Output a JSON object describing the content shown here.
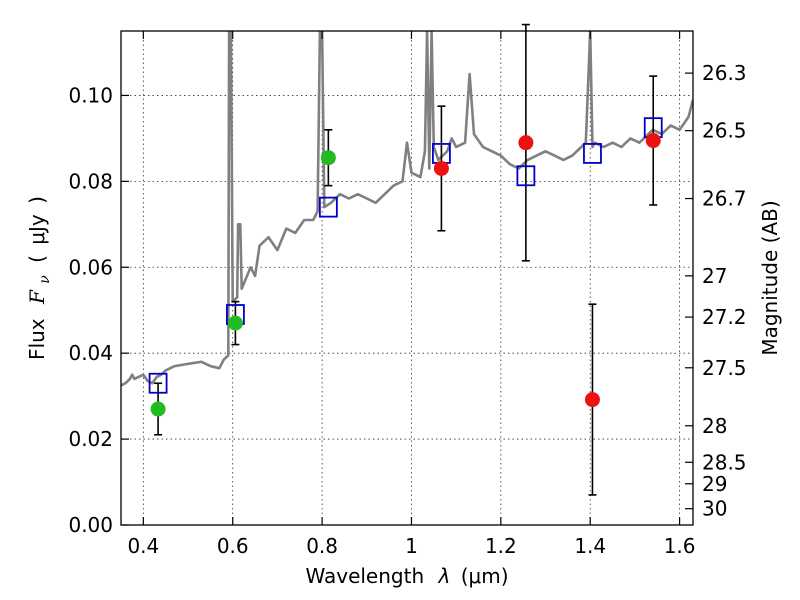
{
  "chart_data": {
    "type": "scatter",
    "title": "",
    "xlabel_prefix": "Wavelength",
    "xlabel_symbol": "λ",
    "xlabel_unit": "(μm)",
    "ylabel_prefix": "Flux",
    "ylabel_symbol": "F",
    "ylabel_subscript": "ν",
    "ylabel_unit": "μJy",
    "y2label": "Magnitude (AB)",
    "xlim": [
      0.35,
      1.63
    ],
    "ylim": [
      0.0,
      0.115
    ],
    "grid": true,
    "x_ticks": [
      0.4,
      0.6,
      0.8,
      1.0,
      1.2,
      1.4,
      1.6
    ],
    "x_tick_labels": [
      "0.4",
      "0.6",
      "0.8",
      "1",
      "1.2",
      "1.4",
      "1.6"
    ],
    "y_ticks": [
      0.0,
      0.02,
      0.04,
      0.06,
      0.08,
      0.1
    ],
    "y_tick_labels": [
      "0.00",
      "0.02",
      "0.04",
      "0.06",
      "0.08",
      "0.10"
    ],
    "y2_ticks": [
      {
        "label": "26.3",
        "flux": 0.1052
      },
      {
        "label": "26.5",
        "flux": 0.0918
      },
      {
        "label": "26.7",
        "flux": 0.076
      },
      {
        "label": "27",
        "flux": 0.058
      },
      {
        "label": "27.2",
        "flux": 0.0484
      },
      {
        "label": "27.5",
        "flux": 0.0366
      },
      {
        "label": "28",
        "flux": 0.0231
      },
      {
        "label": "28.5",
        "flux": 0.0146
      },
      {
        "label": "29",
        "flux": 0.0096
      },
      {
        "label": "30",
        "flux": 0.0038
      }
    ],
    "model_spectrum": {
      "color": "#808080",
      "points": [
        [
          0.35,
          0.0325
        ],
        [
          0.36,
          0.033
        ],
        [
          0.37,
          0.034
        ],
        [
          0.375,
          0.035
        ],
        [
          0.38,
          0.034
        ],
        [
          0.39,
          0.0345
        ],
        [
          0.4,
          0.035
        ],
        [
          0.41,
          0.0335
        ],
        [
          0.42,
          0.033
        ],
        [
          0.43,
          0.0345
        ],
        [
          0.44,
          0.035
        ],
        [
          0.45,
          0.036
        ],
        [
          0.47,
          0.037
        ],
        [
          0.5,
          0.0375
        ],
        [
          0.53,
          0.038
        ],
        [
          0.55,
          0.037
        ],
        [
          0.57,
          0.0365
        ],
        [
          0.58,
          0.0385
        ],
        [
          0.59,
          0.0395
        ],
        [
          0.592,
          0.115
        ],
        [
          0.596,
          0.115
        ],
        [
          0.6,
          0.052
        ],
        [
          0.61,
          0.053
        ],
        [
          0.612,
          0.07
        ],
        [
          0.617,
          0.07
        ],
        [
          0.62,
          0.055
        ],
        [
          0.64,
          0.06
        ],
        [
          0.65,
          0.058
        ],
        [
          0.66,
          0.065
        ],
        [
          0.68,
          0.067
        ],
        [
          0.7,
          0.064
        ],
        [
          0.72,
          0.069
        ],
        [
          0.74,
          0.068
        ],
        [
          0.76,
          0.071
        ],
        [
          0.78,
          0.071
        ],
        [
          0.79,
          0.073
        ],
        [
          0.795,
          0.115
        ],
        [
          0.8,
          0.115
        ],
        [
          0.805,
          0.074
        ],
        [
          0.82,
          0.075
        ],
        [
          0.84,
          0.077
        ],
        [
          0.86,
          0.076
        ],
        [
          0.88,
          0.077
        ],
        [
          0.9,
          0.076
        ],
        [
          0.92,
          0.075
        ],
        [
          0.94,
          0.077
        ],
        [
          0.96,
          0.079
        ],
        [
          0.98,
          0.08
        ],
        [
          0.99,
          0.089
        ],
        [
          1.0,
          0.082
        ],
        [
          1.02,
          0.081
        ],
        [
          1.03,
          0.087
        ],
        [
          1.035,
          0.115
        ],
        [
          1.04,
          0.083
        ],
        [
          1.045,
          0.115
        ],
        [
          1.05,
          0.088
        ],
        [
          1.06,
          0.085
        ],
        [
          1.07,
          0.086
        ],
        [
          1.08,
          0.087
        ],
        [
          1.09,
          0.09
        ],
        [
          1.1,
          0.088
        ],
        [
          1.12,
          0.089
        ],
        [
          1.13,
          0.105
        ],
        [
          1.14,
          0.091
        ],
        [
          1.16,
          0.088
        ],
        [
          1.18,
          0.087
        ],
        [
          1.2,
          0.086
        ],
        [
          1.22,
          0.084
        ],
        [
          1.24,
          0.083
        ],
        [
          1.26,
          0.085
        ],
        [
          1.28,
          0.086
        ],
        [
          1.3,
          0.087
        ],
        [
          1.32,
          0.086
        ],
        [
          1.34,
          0.085
        ],
        [
          1.36,
          0.086
        ],
        [
          1.38,
          0.088
        ],
        [
          1.39,
          0.089
        ],
        [
          1.4,
          0.115
        ],
        [
          1.405,
          0.088
        ],
        [
          1.41,
          0.089
        ],
        [
          1.43,
          0.088
        ],
        [
          1.45,
          0.089
        ],
        [
          1.47,
          0.088
        ],
        [
          1.49,
          0.09
        ],
        [
          1.51,
          0.089
        ],
        [
          1.53,
          0.091
        ],
        [
          1.54,
          0.092
        ],
        [
          1.56,
          0.091
        ],
        [
          1.58,
          0.093
        ],
        [
          1.6,
          0.092
        ],
        [
          1.62,
          0.095
        ],
        [
          1.63,
          0.099
        ]
      ]
    },
    "series": [
      {
        "marker": "square",
        "color": "#0000cc",
        "points": [
          {
            "x": 0.433,
            "y": 0.033
          },
          {
            "x": 0.606,
            "y": 0.049
          },
          {
            "x": 0.814,
            "y": 0.074
          },
          {
            "x": 1.067,
            "y": 0.0865
          },
          {
            "x": 1.256,
            "y": 0.0813
          },
          {
            "x": 1.405,
            "y": 0.0865
          },
          {
            "x": 1.541,
            "y": 0.0925
          }
        ]
      },
      {
        "marker": "circle",
        "color": "#22bb22",
        "points": [
          {
            "x": 0.433,
            "y": 0.027,
            "err_lo": 0.006,
            "err_hi": 0.006
          },
          {
            "x": 0.606,
            "y": 0.047,
            "err_lo": 0.005,
            "err_hi": 0.005
          },
          {
            "x": 0.814,
            "y": 0.0855,
            "err_lo": 0.0065,
            "err_hi": 0.0065
          }
        ]
      },
      {
        "marker": "circle",
        "color": "#ee1111",
        "points": [
          {
            "x": 1.067,
            "y": 0.083,
            "err_lo": 0.0145,
            "err_hi": 0.0145
          },
          {
            "x": 1.256,
            "y": 0.089,
            "err_lo": 0.0275,
            "err_hi": 0.0275
          },
          {
            "x": 1.405,
            "y": 0.0292,
            "err_lo": 0.0222,
            "err_hi": 0.0222
          },
          {
            "x": 1.541,
            "y": 0.0895,
            "err_lo": 0.015,
            "err_hi": 0.015
          }
        ]
      }
    ]
  }
}
